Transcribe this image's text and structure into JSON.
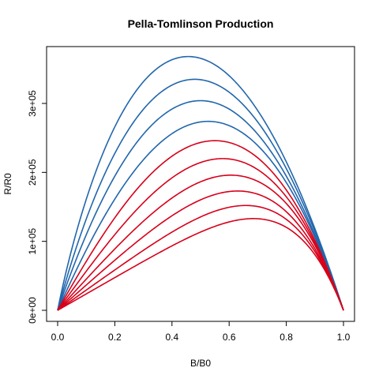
{
  "chart_data": {
    "type": "line",
    "title": "Pella-Tomlinson Production",
    "xlabel": "B/B0",
    "ylabel": "R/R0",
    "xlim": [
      0,
      1
    ],
    "ylim": [
      0,
      368000
    ],
    "x_ticks": [
      0,
      0.2,
      0.4,
      0.6,
      0.8,
      1
    ],
    "x_tick_labels": [
      "0.0",
      "0.2",
      "0.4",
      "0.6",
      "0.8",
      "1.0"
    ],
    "y_ticks": [
      0,
      100000,
      200000,
      300000
    ],
    "y_tick_labels": [
      "0e+00",
      "1e+05",
      "2e+05",
      "3e+05"
    ],
    "grid": false,
    "legend": "none",
    "curve_family": "R = a * B * (1 - B^p)",
    "series": [
      {
        "p": 0.6,
        "peak_x": 0.37,
        "peak_y": 368000,
        "color": "#2166ac"
      },
      {
        "p": 0.8,
        "peak_x": 0.4,
        "peak_y": 335000,
        "color": "#2166ac"
      },
      {
        "p": 1.0,
        "peak_x": 0.435,
        "peak_y": 304000,
        "color": "#2166ac"
      },
      {
        "p": 1.3,
        "peak_x": 0.47,
        "peak_y": 274000,
        "color": "#2166ac"
      },
      {
        "p": 1.6,
        "peak_x": 0.5,
        "peak_y": 246000,
        "color": "#d7001a"
      },
      {
        "p": 2.0,
        "peak_x": 0.53,
        "peak_y": 220000,
        "color": "#d7001a"
      },
      {
        "p": 2.5,
        "peak_x": 0.565,
        "peak_y": 196000,
        "color": "#d7001a"
      },
      {
        "p": 3.0,
        "peak_x": 0.595,
        "peak_y": 173000,
        "color": "#d7001a"
      },
      {
        "p": 3.7,
        "peak_x": 0.63,
        "peak_y": 152000,
        "color": "#d7001a"
      },
      {
        "p": 4.5,
        "peak_x": 0.665,
        "peak_y": 133000,
        "color": "#d7001a"
      }
    ]
  }
}
